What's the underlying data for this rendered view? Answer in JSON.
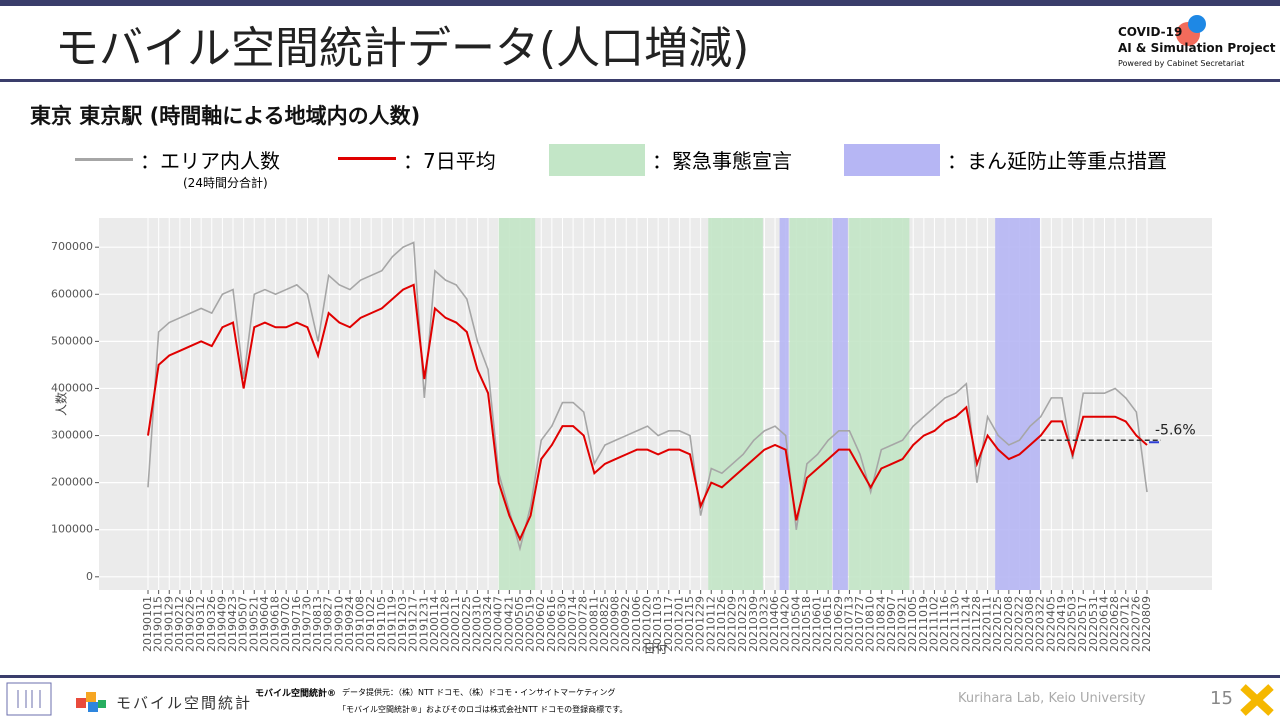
{
  "header": {
    "title": "モバイル空間統計データ(人口増減)",
    "logo_line1": "COVID-19",
    "logo_line2": "AI & Simulation Project",
    "logo_line3": "Powered by Cabinet Secretariat"
  },
  "subtitle": "東京 東京駅 (時間軸による地域内の人数)",
  "chart_data": {
    "type": "line",
    "categories": [
      "20190101",
      "20190115",
      "20190129",
      "20190212",
      "20190226",
      "20190312",
      "20190326",
      "20190409",
      "20190423",
      "20190507",
      "20190521",
      "20190604",
      "20190618",
      "20190702",
      "20190716",
      "20190730",
      "20190813",
      "20190827",
      "20190910",
      "20190924",
      "20191008",
      "20191022",
      "20191105",
      "20191119",
      "20191203",
      "20191217",
      "20191231",
      "20200114",
      "20200128",
      "20200211",
      "20200225",
      "20200310",
      "20200324",
      "20200407",
      "20200421",
      "20200505",
      "20200519",
      "20200602",
      "20200616",
      "20200630",
      "20200714",
      "20200728",
      "20200811",
      "20200825",
      "20200908",
      "20200922",
      "20201006",
      "20201020",
      "20201103",
      "20201117",
      "20201201",
      "20201215",
      "20201229",
      "20210112",
      "20210126",
      "20210209",
      "20210223",
      "20210309",
      "20210323",
      "20210406",
      "20210420",
      "20210504",
      "20210518",
      "20210601",
      "20210615",
      "20210629",
      "20210713",
      "20210727",
      "20210810",
      "20210824",
      "20210907",
      "20210921",
      "20211005",
      "20211019",
      "20211102",
      "20211116",
      "20211130",
      "20211214",
      "20211228",
      "20220111",
      "20220125",
      "20220208",
      "20220222",
      "20220308",
      "20220322",
      "20220405",
      "20220419",
      "20220503",
      "20220517",
      "20220531",
      "20220614",
      "20220628",
      "20220712",
      "20220726",
      "20220809"
    ],
    "series": [
      {
        "name": "：エリア内人数",
        "note": "(24時間分合計)",
        "color": "#a6a6a6",
        "values": [
          190000,
          520000,
          540000,
          550000,
          560000,
          570000,
          560000,
          600000,
          610000,
          420000,
          600000,
          610000,
          600000,
          610000,
          620000,
          600000,
          500000,
          640000,
          620000,
          610000,
          630000,
          640000,
          650000,
          680000,
          700000,
          710000,
          380000,
          650000,
          630000,
          620000,
          590000,
          500000,
          440000,
          220000,
          140000,
          60000,
          150000,
          290000,
          320000,
          370000,
          370000,
          350000,
          240000,
          280000,
          290000,
          300000,
          310000,
          320000,
          300000,
          310000,
          310000,
          300000,
          130000,
          230000,
          220000,
          240000,
          260000,
          290000,
          310000,
          320000,
          300000,
          100000,
          240000,
          260000,
          290000,
          310000,
          310000,
          260000,
          180000,
          270000,
          280000,
          290000,
          320000,
          340000,
          360000,
          380000,
          390000,
          410000,
          200000,
          340000,
          300000,
          280000,
          290000,
          320000,
          340000,
          380000,
          380000,
          250000,
          390000,
          390000,
          390000,
          400000,
          380000,
          350000,
          180000
        ]
      },
      {
        "name": "：7日平均",
        "color": "#e00000",
        "values": [
          300000,
          450000,
          470000,
          480000,
          490000,
          500000,
          490000,
          530000,
          540000,
          400000,
          530000,
          540000,
          530000,
          530000,
          540000,
          530000,
          470000,
          560000,
          540000,
          530000,
          550000,
          560000,
          570000,
          590000,
          610000,
          620000,
          420000,
          570000,
          550000,
          540000,
          520000,
          440000,
          390000,
          200000,
          130000,
          80000,
          130000,
          250000,
          280000,
          320000,
          320000,
          300000,
          220000,
          240000,
          250000,
          260000,
          270000,
          270000,
          260000,
          270000,
          270000,
          260000,
          150000,
          200000,
          190000,
          210000,
          230000,
          250000,
          270000,
          280000,
          270000,
          120000,
          210000,
          230000,
          250000,
          270000,
          270000,
          230000,
          190000,
          230000,
          240000,
          250000,
          280000,
          300000,
          310000,
          330000,
          340000,
          360000,
          240000,
          300000,
          270000,
          250000,
          260000,
          280000,
          300000,
          330000,
          330000,
          260000,
          340000,
          340000,
          340000,
          340000,
          330000,
          300000,
          280000
        ]
      }
    ],
    "shaded": [
      {
        "name": "：緊急事態宣言",
        "color": "#c3e6c7",
        "periods": [
          [
            "20200407",
            "20200525"
          ],
          [
            "20210108",
            "20210321"
          ],
          [
            "20210425",
            "20210620"
          ],
          [
            "20210712",
            "20210930"
          ]
        ]
      },
      {
        "name": "：まん延防止等重点措置",
        "color": "#b6b6f4",
        "periods": [
          [
            "20210412",
            "20210424"
          ],
          [
            "20210621",
            "20210711"
          ],
          [
            "20220121",
            "20220321"
          ]
        ]
      }
    ],
    "reference_line": {
      "value": 290000,
      "start": "20220322",
      "label": "-5.6%"
    },
    "xlabel": "日付",
    "ylabel": "人数",
    "ylim": [
      -28000,
      762000
    ],
    "yticks": [
      0,
      100000,
      200000,
      300000,
      400000,
      500000,
      600000,
      700000
    ],
    "grid": true
  },
  "footer": {
    "logo_text": "モバイル空間統計",
    "brand": "モバイル空間統計®",
    "source": "データ提供元：（株）NTT ドコモ、（株）ドコモ・インサイトマーケティング",
    "trademark": "「モバイル空間統計®」およびそのロゴは株式会社NTT ドコモの登録商標です。",
    "lab": "Kurihara Lab, Keio University",
    "page": "15"
  }
}
